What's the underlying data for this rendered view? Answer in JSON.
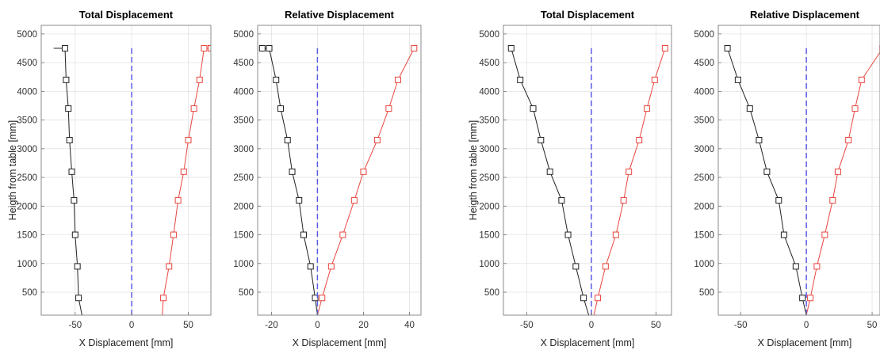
{
  "chart_data": [
    {
      "type": "line",
      "title": "Total Displacement",
      "xlabel": "X Displacement [mm]",
      "ylabel": "Heigth from table [mm]",
      "xlim": [
        -80,
        70
      ],
      "ylim": [
        100,
        5150
      ],
      "xticks": [
        "-50",
        "0",
        "50"
      ],
      "xtick_values": [
        -50,
        0,
        50
      ],
      "yticks": [
        "500",
        "1000",
        "1500",
        "2000",
        "2500",
        "3000",
        "3500",
        "4000",
        "4500",
        "5000"
      ],
      "ytick_values": [
        500,
        1000,
        1500,
        2000,
        2500,
        3000,
        3500,
        4000,
        4500,
        5000
      ],
      "grid": true,
      "series": [
        {
          "color": "#222222",
          "marker": "square",
          "x": [
            -44,
            -47,
            -48,
            -50,
            -51,
            -53,
            -55,
            -56,
            -58,
            -59,
            -63,
            -69
          ],
          "y": [
            100,
            400,
            950,
            1500,
            2100,
            2600,
            3150,
            3700,
            4200,
            4750,
            4750,
            4750
          ],
          "markers_at": [
            1,
            2,
            3,
            4,
            5,
            6,
            7,
            8,
            9
          ]
        },
        {
          "color": "#e8463f",
          "marker": "square",
          "x": [
            27,
            28,
            33,
            37,
            41,
            46,
            50,
            55,
            60,
            64,
            70
          ],
          "y": [
            100,
            400,
            950,
            1500,
            2100,
            2600,
            3150,
            3700,
            4200,
            4750,
            4750
          ],
          "markers_at": [
            1,
            2,
            3,
            4,
            5,
            6,
            7,
            8,
            9,
            10
          ]
        },
        {
          "color": "#5a5ae6",
          "dashed": true,
          "x": [
            0,
            0
          ],
          "y": [
            100,
            4750
          ]
        }
      ]
    },
    {
      "type": "line",
      "title": "Relative Displacement",
      "xlabel": "X Displacement [mm]",
      "ylabel": "",
      "xlim": [
        -26,
        45
      ],
      "ylim": [
        100,
        5150
      ],
      "xticks": [
        "-20",
        "0",
        "20",
        "40"
      ],
      "xtick_values": [
        -20,
        0,
        20,
        40
      ],
      "yticks": [
        "500",
        "1000",
        "1500",
        "2000",
        "2500",
        "3000",
        "3500",
        "4000",
        "4500",
        "5000"
      ],
      "ytick_values": [
        500,
        1000,
        1500,
        2000,
        2500,
        3000,
        3500,
        4000,
        4500,
        5000
      ],
      "grid": true,
      "series": [
        {
          "color": "#222222",
          "marker": "square",
          "x": [
            0,
            -1,
            -3,
            -6,
            -8,
            -11,
            -13,
            -16,
            -18,
            -21,
            -24
          ],
          "y": [
            100,
            400,
            950,
            1500,
            2100,
            2600,
            3150,
            3700,
            4200,
            4750,
            4750
          ],
          "markers_at": [
            1,
            2,
            3,
            4,
            5,
            6,
            7,
            8,
            9,
            10
          ]
        },
        {
          "color": "#e8463f",
          "marker": "square",
          "x": [
            0,
            2,
            6,
            11,
            16,
            20,
            26,
            31,
            35,
            42
          ],
          "y": [
            100,
            400,
            950,
            1500,
            2100,
            2600,
            3150,
            3700,
            4200,
            4750
          ],
          "markers_at": [
            1,
            2,
            3,
            4,
            5,
            6,
            7,
            8,
            9
          ]
        },
        {
          "color": "#5a5ae6",
          "dashed": true,
          "x": [
            0,
            0
          ],
          "y": [
            100,
            4750
          ]
        }
      ]
    },
    {
      "type": "line",
      "title": "Total Displacement",
      "xlabel": "X Displacement [mm]",
      "ylabel": "Heigth from table [mm]",
      "xlim": [
        -68,
        62
      ],
      "ylim": [
        100,
        5150
      ],
      "xticks": [
        "-50",
        "0",
        "50"
      ],
      "xtick_values": [
        -50,
        0,
        50
      ],
      "yticks": [
        "500",
        "1000",
        "1500",
        "2000",
        "2500",
        "3000",
        "3500",
        "4000",
        "4500",
        "5000"
      ],
      "ytick_values": [
        500,
        1000,
        1500,
        2000,
        2500,
        3000,
        3500,
        4000,
        4500,
        5000
      ],
      "grid": true,
      "series": [
        {
          "color": "#222222",
          "marker": "square",
          "x": [
            -2,
            -6,
            -12,
            -18,
            -23,
            -32,
            -39,
            -45,
            -55,
            -62
          ],
          "y": [
            100,
            400,
            950,
            1500,
            2100,
            2600,
            3150,
            3700,
            4200,
            4750
          ],
          "markers_at": [
            1,
            2,
            3,
            4,
            5,
            6,
            7,
            8,
            9
          ]
        },
        {
          "color": "#e8463f",
          "marker": "square",
          "x": [
            2,
            5,
            11,
            19,
            25,
            29,
            37,
            43,
            49,
            57
          ],
          "y": [
            100,
            400,
            950,
            1500,
            2100,
            2600,
            3150,
            3700,
            4200,
            4750
          ],
          "markers_at": [
            1,
            2,
            3,
            4,
            5,
            6,
            7,
            8,
            9
          ]
        },
        {
          "color": "#5a5ae6",
          "dashed": true,
          "x": [
            0,
            0
          ],
          "y": [
            100,
            4750
          ]
        }
      ]
    },
    {
      "type": "line",
      "title": "Relative Displacement",
      "xlabel": "X Displacement [mm]",
      "ylabel": "",
      "xlim": [
        -67,
        56
      ],
      "ylim": [
        100,
        5150
      ],
      "xticks": [
        "-50",
        "0",
        "50"
      ],
      "xtick_values": [
        -50,
        0,
        50
      ],
      "yticks": [
        "500",
        "1000",
        "1500",
        "2000",
        "2500",
        "3000",
        "3500",
        "4000",
        "4500",
        "5000"
      ],
      "ytick_values": [
        500,
        1000,
        1500,
        2000,
        2500,
        3000,
        3500,
        4000,
        4500,
        5000
      ],
      "grid": true,
      "series": [
        {
          "color": "#222222",
          "marker": "square",
          "x": [
            0,
            -3,
            -8,
            -17,
            -21,
            -30,
            -36,
            -43,
            -52,
            -60
          ],
          "y": [
            100,
            400,
            950,
            1500,
            2100,
            2600,
            3150,
            3700,
            4200,
            4750
          ],
          "markers_at": [
            1,
            2,
            3,
            4,
            5,
            6,
            7,
            8,
            9
          ]
        },
        {
          "color": "#e8463f",
          "marker": "square",
          "x": [
            0,
            3,
            8,
            14,
            20,
            24,
            32,
            37,
            42,
            58
          ],
          "y": [
            100,
            400,
            950,
            1500,
            2100,
            2600,
            3150,
            3700,
            4200,
            4750
          ],
          "markers_at": [
            1,
            2,
            3,
            4,
            5,
            6,
            7,
            8,
            9
          ]
        },
        {
          "color": "#5a5ae6",
          "dashed": true,
          "x": [
            0,
            0
          ],
          "y": [
            100,
            4750
          ]
        }
      ]
    }
  ]
}
